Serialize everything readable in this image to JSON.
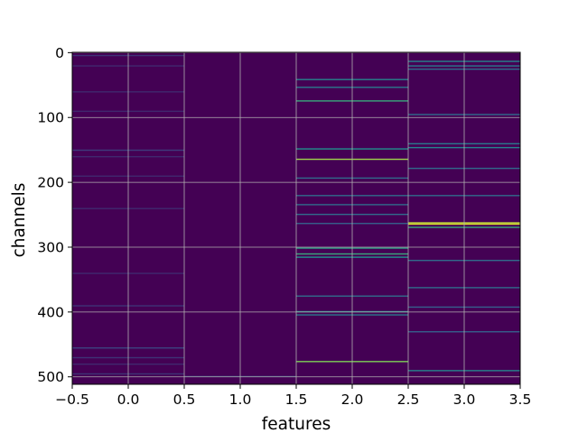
{
  "colors": {
    "colormap": "viridis",
    "background_cell": "#440154",
    "grid": "#b0b0b0",
    "axis": "#000000"
  },
  "chart_data": {
    "type": "heatmap",
    "title": "",
    "xlabel": "features",
    "ylabel": "channels",
    "xlim": [
      -0.5,
      3.5
    ],
    "ylim": [
      511.5,
      -0.5
    ],
    "y_inverted": true,
    "grid": true,
    "n_columns": 4,
    "n_rows": 512,
    "value_range": [
      0,
      1
    ],
    "x_ticks": [
      -0.5,
      0.0,
      0.5,
      1.0,
      1.5,
      2.0,
      2.5,
      3.0,
      3.5
    ],
    "x_tick_labels": [
      "−0.5",
      "0.0",
      "0.5",
      "1.0",
      "1.5",
      "2.0",
      "2.5",
      "3.0",
      "3.5"
    ],
    "y_ticks": [
      0,
      100,
      200,
      300,
      400,
      500
    ],
    "y_tick_labels": [
      "0",
      "100",
      "200",
      "300",
      "400",
      "500"
    ],
    "highlights": [
      {
        "column": 0,
        "rows": [
          4,
          20,
          60,
          90,
          150,
          160,
          190,
          240,
          340,
          390,
          455,
          470,
          480,
          495
        ],
        "values": [
          0.15,
          0.12,
          0.12,
          0.12,
          0.18,
          0.12,
          0.12,
          0.12,
          0.12,
          0.15,
          0.2,
          0.15,
          0.12,
          0.15
        ]
      },
      {
        "column": 1,
        "rows": [
          499
        ],
        "values": [
          0.18
        ]
      },
      {
        "column": 2,
        "rows": [
          41,
          53,
          74,
          148,
          164,
          193,
          220,
          234,
          249,
          263,
          301,
          310,
          315,
          375,
          399,
          404,
          476
        ],
        "values": [
          0.45,
          0.4,
          0.6,
          0.5,
          0.85,
          0.35,
          0.35,
          0.35,
          0.35,
          0.3,
          0.55,
          0.6,
          0.5,
          0.35,
          0.5,
          0.4,
          0.8
        ]
      },
      {
        "column": 3,
        "rows": [
          13,
          20,
          25,
          95,
          140,
          146,
          178,
          220,
          262,
          264,
          269,
          320,
          362,
          392,
          430,
          490
        ],
        "values": [
          0.45,
          0.4,
          0.35,
          0.35,
          0.4,
          0.45,
          0.35,
          0.35,
          0.9,
          0.95,
          0.6,
          0.35,
          0.35,
          0.3,
          0.3,
          0.45
        ]
      }
    ]
  }
}
